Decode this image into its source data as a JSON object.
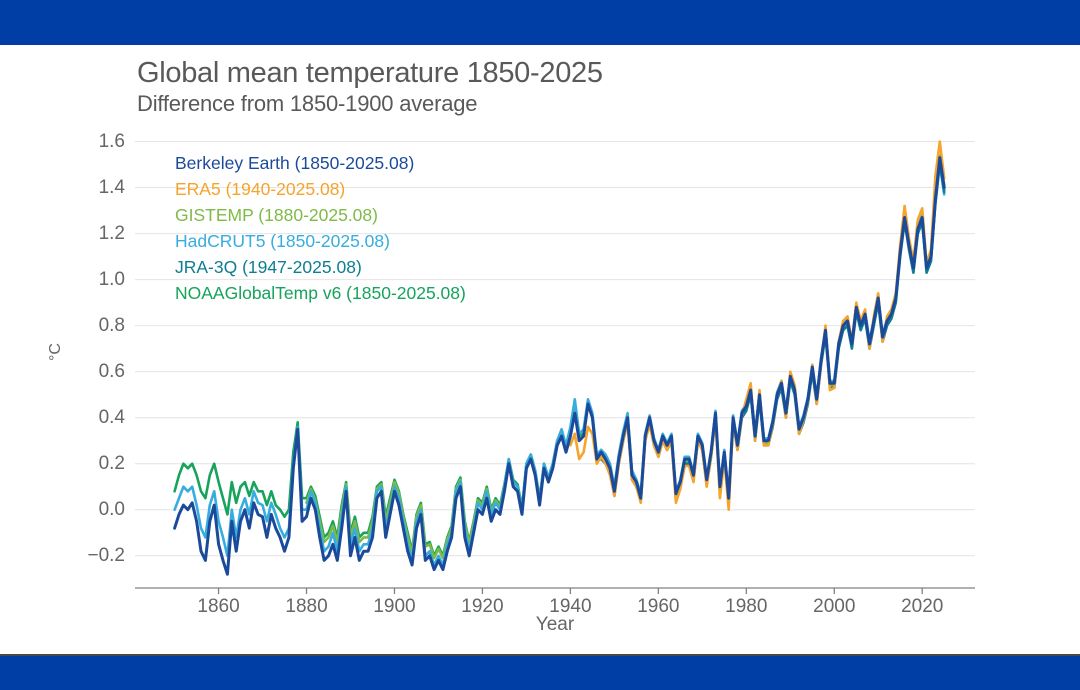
{
  "page": {
    "banner_color": "#003da5",
    "separator_color": "#4b4a44",
    "background_color": "#ffffff",
    "title_color": "#595959",
    "tick_label_color": "#666666",
    "grid_color": "#e4e4e4",
    "axis_color": "#808080"
  },
  "chart_data": {
    "type": "line",
    "title": "Global mean temperature 1850-2025",
    "subtitle": "Difference from 1850-1900 average",
    "xlabel": "Year",
    "ylabel": "°C",
    "xlim": [
      1841,
      2032
    ],
    "ylim": [
      -0.34,
      1.65
    ],
    "x_ticks": [
      1860,
      1880,
      1900,
      1920,
      1940,
      1960,
      1980,
      2000,
      2020
    ],
    "y_ticks": [
      -0.2,
      0.0,
      0.2,
      0.4,
      0.6,
      0.8,
      1.0,
      1.2,
      1.4,
      1.6
    ],
    "grid": "horizontal",
    "legend_position": "top-left-inside",
    "series": [
      {
        "name": "berkeley-earth",
        "label": "Berkeley Earth (1850-2025.08)",
        "color": "#1c4a9b",
        "line_width": 3,
        "start_year": 1850,
        "values": [
          -0.08,
          -0.02,
          0.02,
          0.0,
          0.03,
          -0.05,
          -0.18,
          -0.22,
          -0.05,
          0.02,
          -0.15,
          -0.22,
          -0.28,
          -0.05,
          -0.18,
          -0.05,
          0.0,
          -0.08,
          0.03,
          -0.02,
          -0.03,
          -0.12,
          -0.02,
          -0.08,
          -0.12,
          -0.18,
          -0.12,
          0.18,
          0.35,
          -0.05,
          -0.03,
          0.05,
          0.0,
          -0.12,
          -0.22,
          -0.2,
          -0.15,
          -0.22,
          -0.08,
          0.08,
          -0.2,
          -0.12,
          -0.22,
          -0.18,
          -0.18,
          -0.12,
          0.05,
          0.08,
          -0.12,
          -0.02,
          0.08,
          0.02,
          -0.08,
          -0.18,
          -0.24,
          -0.08,
          -0.02,
          -0.22,
          -0.2,
          -0.26,
          -0.22,
          -0.26,
          -0.18,
          -0.12,
          0.05,
          0.1,
          -0.12,
          -0.2,
          -0.1,
          0.0,
          -0.02,
          0.05,
          -0.05,
          0.0,
          -0.02,
          0.08,
          0.2,
          0.1,
          0.08,
          -0.02,
          0.18,
          0.22,
          0.15,
          0.02,
          0.18,
          0.12,
          0.18,
          0.28,
          0.32,
          0.25,
          0.32,
          0.42,
          0.3,
          0.32,
          0.46,
          0.4,
          0.22,
          0.25,
          0.22,
          0.18,
          0.08,
          0.22,
          0.32,
          0.4,
          0.15,
          0.12,
          0.05,
          0.32,
          0.4,
          0.3,
          0.25,
          0.32,
          0.28,
          0.32,
          0.07,
          0.12,
          0.22,
          0.22,
          0.15,
          0.32,
          0.28,
          0.13,
          0.25,
          0.42,
          0.1,
          0.25,
          0.05,
          0.4,
          0.28,
          0.42,
          0.45,
          0.52,
          0.32,
          0.5,
          0.3,
          0.3,
          0.38,
          0.5,
          0.55,
          0.42,
          0.58,
          0.52,
          0.35,
          0.4,
          0.48,
          0.62,
          0.48,
          0.65,
          0.78,
          0.55,
          0.55,
          0.72,
          0.8,
          0.82,
          0.72,
          0.88,
          0.8,
          0.85,
          0.72,
          0.82,
          0.92,
          0.75,
          0.82,
          0.85,
          0.92,
          1.12,
          1.27,
          1.15,
          1.05,
          1.22,
          1.27,
          1.05,
          1.1,
          1.35,
          1.53,
          1.4
        ]
      },
      {
        "name": "era5",
        "label": "ERA5 (1940-2025.08)",
        "color": "#f5a42c",
        "line_width": 2.6,
        "start_year": 1940,
        "values": [
          0.28,
          0.33,
          0.22,
          0.25,
          0.36,
          0.33,
          0.2,
          0.23,
          0.2,
          0.15,
          0.06,
          0.2,
          0.3,
          0.38,
          0.13,
          0.1,
          0.03,
          0.3,
          0.37,
          0.28,
          0.23,
          0.3,
          0.26,
          0.3,
          0.03,
          0.09,
          0.19,
          0.19,
          0.12,
          0.3,
          0.26,
          0.1,
          0.23,
          0.4,
          0.05,
          0.22,
          0.0,
          0.38,
          0.26,
          0.41,
          0.48,
          0.55,
          0.3,
          0.52,
          0.28,
          0.28,
          0.37,
          0.5,
          0.56,
          0.4,
          0.6,
          0.54,
          0.33,
          0.39,
          0.47,
          0.63,
          0.46,
          0.64,
          0.8,
          0.52,
          0.53,
          0.73,
          0.82,
          0.84,
          0.73,
          0.9,
          0.82,
          0.87,
          0.7,
          0.84,
          0.94,
          0.73,
          0.84,
          0.87,
          0.94,
          1.15,
          1.32,
          1.18,
          1.08,
          1.26,
          1.31,
          1.07,
          1.13,
          1.45,
          1.6,
          1.44
        ]
      },
      {
        "name": "gistemp",
        "label": "GISTEMP (1880-2025.08)",
        "color": "#7fba47",
        "line_width": 2.6,
        "start_year": 1880,
        "values": [
          0.03,
          0.09,
          0.04,
          -0.05,
          -0.14,
          -0.12,
          -0.07,
          -0.14,
          0.0,
          0.11,
          -0.12,
          -0.05,
          -0.14,
          -0.12,
          -0.12,
          -0.05,
          0.09,
          0.11,
          -0.05,
          0.03,
          0.12,
          0.07,
          -0.03,
          -0.12,
          -0.19,
          -0.03,
          0.02,
          -0.16,
          -0.15,
          -0.21,
          -0.17,
          -0.21,
          -0.13,
          -0.08,
          0.09,
          0.13,
          -0.06,
          -0.15,
          -0.06,
          0.04,
          0.02,
          0.09,
          -0.01,
          0.04,
          0.01,
          0.1,
          0.21,
          0.12,
          0.1,
          0.0,
          0.19,
          0.23,
          0.16,
          0.04,
          0.19,
          0.13,
          0.19,
          0.29,
          0.33,
          0.26,
          0.33,
          0.43,
          0.31,
          0.32,
          0.46,
          0.4,
          0.22,
          0.25,
          0.22,
          0.18,
          0.08,
          0.22,
          0.32,
          0.4,
          0.15,
          0.11,
          0.05,
          0.31,
          0.39,
          0.29,
          0.24,
          0.31,
          0.27,
          0.31,
          0.06,
          0.11,
          0.21,
          0.21,
          0.14,
          0.31,
          0.27,
          0.12,
          0.24,
          0.41,
          0.09,
          0.24,
          0.04,
          0.39,
          0.27,
          0.41,
          0.44,
          0.51,
          0.31,
          0.49,
          0.29,
          0.29,
          0.37,
          0.49,
          0.54,
          0.41,
          0.57,
          0.51,
          0.34,
          0.39,
          0.47,
          0.61,
          0.47,
          0.64,
          0.77,
          0.54,
          0.54,
          0.71,
          0.79,
          0.81,
          0.71,
          0.87,
          0.79,
          0.84,
          0.71,
          0.81,
          0.91,
          0.74,
          0.81,
          0.84,
          0.91,
          1.11,
          1.26,
          1.14,
          1.04,
          1.21,
          1.26,
          1.04,
          1.09,
          1.35,
          1.54,
          1.41
        ]
      },
      {
        "name": "hadcrut5",
        "label": "HadCRUT5 (1850-2025.08)",
        "color": "#36acdf",
        "line_width": 2.6,
        "start_year": 1850,
        "values": [
          0.0,
          0.05,
          0.1,
          0.08,
          0.1,
          0.02,
          -0.08,
          -0.12,
          0.02,
          0.08,
          -0.05,
          -0.12,
          -0.2,
          0.0,
          -0.12,
          0.0,
          0.05,
          -0.02,
          0.08,
          0.03,
          0.02,
          -0.05,
          0.03,
          -0.02,
          -0.08,
          -0.12,
          -0.08,
          0.2,
          0.36,
          0.0,
          0.0,
          0.08,
          0.03,
          -0.08,
          -0.18,
          -0.16,
          -0.1,
          -0.18,
          -0.03,
          0.1,
          -0.16,
          -0.08,
          -0.18,
          -0.15,
          -0.15,
          -0.08,
          0.08,
          0.1,
          -0.08,
          0.0,
          0.1,
          0.05,
          -0.05,
          -0.15,
          -0.22,
          -0.05,
          0.0,
          -0.2,
          -0.18,
          -0.24,
          -0.2,
          -0.24,
          -0.15,
          -0.1,
          0.08,
          0.12,
          -0.08,
          -0.18,
          -0.08,
          0.03,
          0.0,
          0.08,
          -0.02,
          0.03,
          0.0,
          0.1,
          0.22,
          0.12,
          0.1,
          0.0,
          0.2,
          0.24,
          0.17,
          0.04,
          0.2,
          0.14,
          0.2,
          0.3,
          0.35,
          0.28,
          0.36,
          0.48,
          0.33,
          0.35,
          0.48,
          0.42,
          0.24,
          0.26,
          0.24,
          0.2,
          0.1,
          0.24,
          0.34,
          0.42,
          0.17,
          0.13,
          0.07,
          0.33,
          0.41,
          0.31,
          0.26,
          0.33,
          0.29,
          0.33,
          0.08,
          0.13,
          0.23,
          0.23,
          0.16,
          0.33,
          0.29,
          0.14,
          0.26,
          0.43,
          0.11,
          0.26,
          0.06,
          0.41,
          0.29,
          0.43,
          0.46,
          0.53,
          0.33,
          0.51,
          0.31,
          0.31,
          0.39,
          0.51,
          0.56,
          0.43,
          0.59,
          0.53,
          0.36,
          0.41,
          0.49,
          0.63,
          0.49,
          0.66,
          0.79,
          0.56,
          0.56,
          0.73,
          0.81,
          0.83,
          0.73,
          0.89,
          0.81,
          0.86,
          0.73,
          0.83,
          0.93,
          0.76,
          0.83,
          0.86,
          0.93,
          1.13,
          1.28,
          1.16,
          1.06,
          1.23,
          1.28,
          1.06,
          1.11,
          1.33,
          1.5,
          1.37
        ]
      },
      {
        "name": "jra-3q",
        "label": "JRA-3Q (1947-2025.08)",
        "color": "#0d7e93",
        "line_width": 2.6,
        "start_year": 1947,
        "values": [
          0.22,
          0.2,
          0.16,
          0.06,
          0.2,
          0.3,
          0.38,
          0.13,
          0.1,
          0.04,
          0.3,
          0.38,
          0.28,
          0.23,
          0.3,
          0.26,
          0.3,
          0.05,
          0.1,
          0.2,
          0.2,
          0.13,
          0.3,
          0.26,
          0.11,
          0.23,
          0.4,
          0.08,
          0.23,
          0.03,
          0.38,
          0.26,
          0.4,
          0.43,
          0.5,
          0.3,
          0.48,
          0.28,
          0.28,
          0.36,
          0.48,
          0.53,
          0.4,
          0.56,
          0.5,
          0.33,
          0.38,
          0.46,
          0.6,
          0.46,
          0.63,
          0.76,
          0.53,
          0.53,
          0.7,
          0.78,
          0.8,
          0.7,
          0.86,
          0.78,
          0.83,
          0.7,
          0.8,
          0.9,
          0.73,
          0.8,
          0.83,
          0.9,
          1.1,
          1.25,
          1.13,
          1.03,
          1.2,
          1.25,
          1.03,
          1.08,
          1.33,
          1.51,
          1.38
        ]
      },
      {
        "name": "noaaglobaltemp-v6",
        "label": "NOAAGlobalTemp v6 (1850-2025.08)",
        "color": "#16a35c",
        "line_width": 2.6,
        "start_year": 1850,
        "values": [
          0.08,
          0.15,
          0.2,
          0.18,
          0.2,
          0.15,
          0.08,
          0.05,
          0.15,
          0.2,
          0.12,
          0.05,
          -0.02,
          0.12,
          0.03,
          0.1,
          0.12,
          0.06,
          0.12,
          0.08,
          0.08,
          0.02,
          0.08,
          0.02,
          0.0,
          -0.03,
          0.0,
          0.25,
          0.38,
          0.05,
          0.05,
          0.1,
          0.06,
          -0.03,
          -0.12,
          -0.1,
          -0.05,
          -0.12,
          0.02,
          0.12,
          -0.1,
          -0.03,
          -0.12,
          -0.1,
          -0.1,
          -0.03,
          0.1,
          0.12,
          -0.03,
          0.05,
          0.13,
          0.08,
          -0.02,
          -0.1,
          -0.18,
          -0.02,
          0.03,
          -0.15,
          -0.14,
          -0.2,
          -0.16,
          -0.2,
          -0.12,
          -0.07,
          0.1,
          0.14,
          -0.05,
          -0.14,
          -0.05,
          0.05,
          0.03,
          0.1,
          0.0,
          0.05,
          0.02,
          0.11,
          0.22,
          0.13,
          0.11,
          0.01,
          0.2,
          0.24,
          0.17,
          0.05,
          0.2,
          0.14,
          0.2,
          0.3,
          0.34,
          0.27,
          0.34,
          0.44,
          0.32,
          0.33,
          0.47,
          0.41,
          0.23,
          0.26,
          0.23,
          0.19,
          0.09,
          0.23,
          0.33,
          0.41,
          0.16,
          0.12,
          0.06,
          0.32,
          0.4,
          0.3,
          0.25,
          0.32,
          0.28,
          0.32,
          0.07,
          0.12,
          0.22,
          0.22,
          0.15,
          0.32,
          0.28,
          0.13,
          0.25,
          0.42,
          0.1,
          0.25,
          0.05,
          0.4,
          0.28,
          0.42,
          0.45,
          0.52,
          0.32,
          0.5,
          0.3,
          0.3,
          0.38,
          0.5,
          0.55,
          0.42,
          0.58,
          0.52,
          0.35,
          0.4,
          0.48,
          0.62,
          0.48,
          0.65,
          0.78,
          0.55,
          0.55,
          0.72,
          0.8,
          0.82,
          0.72,
          0.88,
          0.8,
          0.85,
          0.72,
          0.82,
          0.92,
          0.75,
          0.82,
          0.85,
          0.92,
          1.12,
          1.26,
          1.14,
          1.04,
          1.21,
          1.26,
          1.04,
          1.09,
          1.34,
          1.52,
          1.39
        ]
      }
    ]
  }
}
